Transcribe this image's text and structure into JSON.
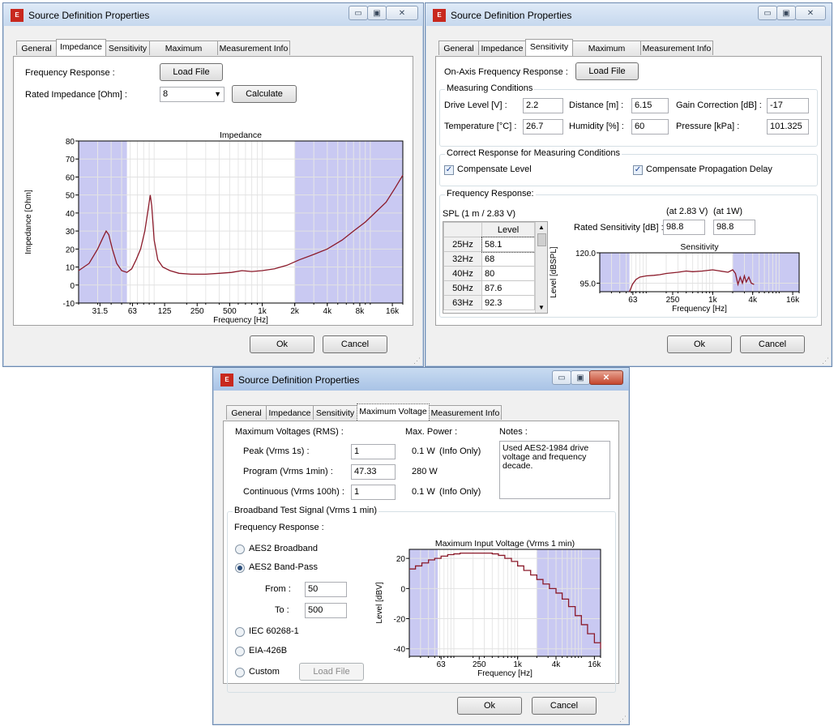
{
  "common": {
    "title": "Source Definition Properties",
    "app_icon": "EASE-logo-icon",
    "tabs": [
      "General",
      "Impedance",
      "Sensitivity",
      "Maximum Voltage",
      "Measurement Info"
    ],
    "ok": "Ok",
    "cancel": "Cancel",
    "minimize_glyph": "▭",
    "maximize_glyph": "▣",
    "close_glyph": "✕",
    "accent_shade": "#c9c9f2",
    "curve_color": "#8b1a2a"
  },
  "impedance": {
    "freq_response_label": "Frequency Response :",
    "load_file": "Load File",
    "rated_label": "Rated Impedance [Ohm] :",
    "rated_value": "8",
    "calculate": "Calculate",
    "chart_data": {
      "type": "line",
      "title": "Impedance",
      "xlabel": "Frequency [Hz]",
      "ylabel": "Impedance [Ohm]",
      "x_scale": "log",
      "xlim": [
        20,
        20000
      ],
      "ylim": [
        -10,
        80
      ],
      "yticks": [
        80,
        70,
        60,
        50,
        40,
        30,
        20,
        10,
        0,
        -10
      ],
      "xticks": [
        "31.5",
        "63",
        "125",
        "250",
        "500",
        "1k",
        "2k",
        "4k",
        "8k",
        "16k"
      ],
      "xtick_values": [
        31.5,
        63,
        125,
        250,
        500,
        1000,
        2000,
        4000,
        8000,
        16000
      ],
      "shaded_ranges": [
        [
          20,
          56
        ],
        [
          2000,
          20000
        ]
      ],
      "series": [
        {
          "x": [
            20,
            25,
            30,
            34,
            36,
            38,
            41,
            45,
            50,
            56,
            62,
            68,
            75,
            82,
            88,
            92,
            95,
            100,
            108,
            120,
            140,
            170,
            220,
            300,
            400,
            520,
            650,
            800,
            1000,
            1300,
            1700,
            2200,
            3000,
            4000,
            5500,
            7000,
            9000,
            11000,
            14000,
            17000,
            20000
          ],
          "y": [
            8,
            12,
            20,
            27,
            30,
            28,
            20,
            12,
            8,
            7,
            9,
            14,
            20,
            30,
            42,
            50,
            44,
            25,
            14,
            10,
            8,
            6.5,
            6,
            6,
            6.5,
            7,
            8,
            7.5,
            8,
            9,
            11,
            14,
            17,
            20,
            25,
            30,
            35,
            40,
            46,
            54,
            61
          ]
        }
      ]
    }
  },
  "sensitivity": {
    "on_axis_label": "On-Axis Frequency Response :",
    "load_file": "Load File",
    "measuring_title": "Measuring Conditions",
    "drive_label": "Drive Level [V] :",
    "drive_value": "2.2",
    "distance_label": "Distance [m] :",
    "distance_value": "6.15",
    "gain_label": "Gain Correction [dB] :",
    "gain_value": "-17",
    "temp_label": "Temperature [°C] :",
    "temp_value": "26.7",
    "humidity_label": "Humidity [%] :",
    "humidity_value": "60",
    "pressure_label": "Pressure [kPa] :",
    "pressure_value": "101.325",
    "correct_title": "Correct Response for Measuring Conditions",
    "comp_level": "Compensate Level",
    "comp_delay": "Compensate Propagation Delay",
    "freq_title": "Frequency Response:",
    "spl_label": "SPL (1 m / 2.83 V)",
    "at283": "(at 2.83 V)",
    "at1w": "(at 1W)",
    "rated_sens_label": "Rated Sensitivity [dB] :",
    "sens_283": "98.8",
    "sens_1w": "98.8",
    "table_header": "Level",
    "table": [
      [
        "25Hz",
        "58.1"
      ],
      [
        "32Hz",
        "68"
      ],
      [
        "40Hz",
        "80"
      ],
      [
        "50Hz",
        "87.6"
      ],
      [
        "63Hz",
        "92.3"
      ]
    ],
    "chart_data": {
      "type": "line",
      "title": "Sensitivity",
      "xlabel": "Frequency [Hz]",
      "ylabel": "Level [dBSPL]",
      "x_scale": "log",
      "xlim": [
        20,
        20000
      ],
      "ylim": [
        88,
        120
      ],
      "yticks": [
        "120.0",
        "95.0"
      ],
      "ytick_values": [
        120,
        95
      ],
      "xticks": [
        "63",
        "250",
        "1k",
        "4k",
        "16k"
      ],
      "xtick_values": [
        63,
        250,
        1000,
        4000,
        16000
      ],
      "shaded_ranges": [
        [
          20,
          56
        ],
        [
          2000,
          20000
        ]
      ],
      "series": [
        {
          "x": [
            56,
            62,
            70,
            80,
            100,
            130,
            160,
            200,
            300,
            400,
            500,
            700,
            1000,
            1300,
            1700,
            2000,
            2200,
            2400,
            2600,
            2800,
            3000,
            3200,
            3500,
            3800,
            4200
          ],
          "y": [
            88,
            94,
            98,
            100,
            101,
            101.5,
            102,
            103,
            104,
            105,
            104.5,
            105,
            106,
            105,
            104,
            106,
            103,
            94,
            100,
            95,
            101,
            96,
            100,
            95,
            94
          ]
        }
      ]
    }
  },
  "maxvoltage": {
    "max_volt_label": "Maximum Voltages (RMS) :",
    "max_power_label": "Max. Power :",
    "notes_label": "Notes :",
    "peak_label": "Peak (Vrms 1s) :",
    "peak_value": "1",
    "peak_power": "0.1 W",
    "peak_info": "(Info Only)",
    "program_label": "Program (Vrms 1min) :",
    "program_value": "47.33",
    "program_power": "280 W",
    "cont_label": "Continuous (Vrms 100h) :",
    "cont_value": "1",
    "cont_power": "0.1 W",
    "cont_info": "(Info Only)",
    "notes_text": "Used AES2-1984 drive voltage and frequency decade.",
    "broadband_title": "Broadband Test Signal (Vrms 1 min)",
    "freq_resp_label": "Frequency Response :",
    "opt_aes2_broad": "AES2 Broadband",
    "opt_aes2_band": "AES2 Band-Pass",
    "from_label": "From :",
    "from_value": "50",
    "to_label": "To :",
    "to_value": "500",
    "opt_iec": "IEC 60268-1",
    "opt_eia": "EIA-426B",
    "opt_custom": "Custom",
    "load_file": "Load File",
    "chart_data": {
      "type": "line",
      "title": "Maximum Input Voltage (Vrms 1 min)",
      "xlabel": "Frequency [Hz]",
      "ylabel": "Level [dBV]",
      "x_scale": "log",
      "xlim": [
        20,
        20000
      ],
      "ylim": [
        -45,
        26
      ],
      "yticks": [
        20,
        0,
        -20,
        -40
      ],
      "xticks": [
        "63",
        "250",
        "1k",
        "4k",
        "16k"
      ],
      "xtick_values": [
        63,
        250,
        1000,
        4000,
        16000
      ],
      "shaded_ranges": [
        [
          20,
          56
        ],
        [
          2000,
          20000
        ]
      ],
      "series": [
        {
          "x": [
            20,
            25,
            31.5,
            40,
            50,
            63,
            80,
            100,
            125,
            160,
            200,
            250,
            315,
            400,
            500,
            630,
            800,
            1000,
            1250,
            1600,
            2000,
            2500,
            3150,
            4000,
            5000,
            6300,
            8000,
            10000,
            12500,
            16000,
            20000
          ],
          "y": [
            13,
            15,
            17,
            19,
            20,
            21.5,
            22.5,
            23,
            23.5,
            23.5,
            23.5,
            23.5,
            23.5,
            23,
            22,
            20,
            18,
            15,
            12,
            9,
            6,
            3,
            0,
            -3,
            -7,
            -12,
            -18,
            -24,
            -30,
            -36,
            -40
          ]
        }
      ]
    }
  }
}
